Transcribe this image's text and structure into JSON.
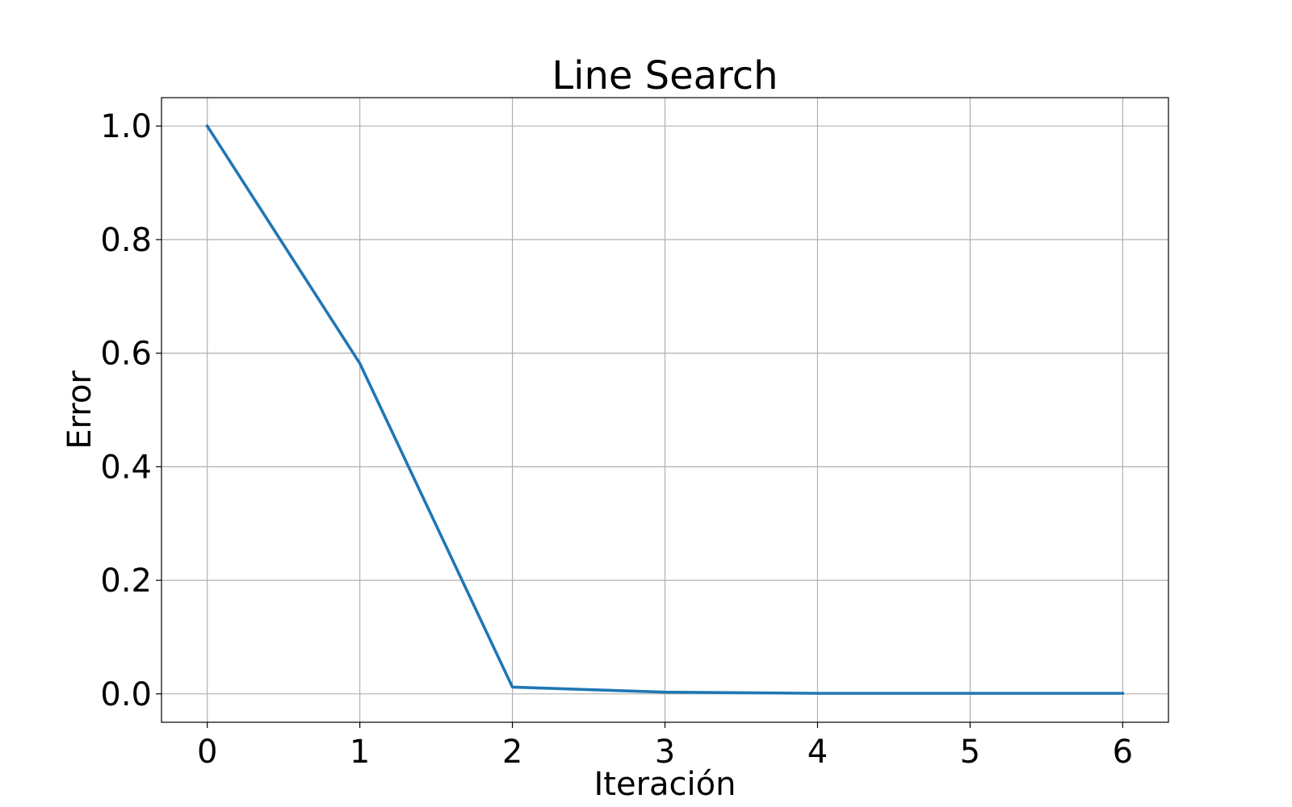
{
  "chart_data": {
    "type": "line",
    "title": "Line Search",
    "xlabel": "Iteración",
    "ylabel": "Error",
    "x": [
      0,
      1,
      2,
      3,
      4,
      5,
      6
    ],
    "series": [
      {
        "values": [
          1.0,
          0.582,
          0.012,
          0.003,
          0.001,
          0.001,
          0.001
        ]
      }
    ],
    "xlim": [
      -0.3,
      6.3
    ],
    "ylim": [
      -0.05,
      1.05
    ],
    "xticks": [
      "0",
      "1",
      "2",
      "3",
      "4",
      "5",
      "6"
    ],
    "yticks": [
      "0.0",
      "0.2",
      "0.4",
      "0.6",
      "0.8",
      "1.0"
    ],
    "grid": true,
    "line_color": "#1f77b4"
  }
}
